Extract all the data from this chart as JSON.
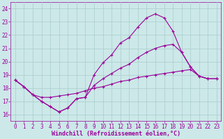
{
  "xlabel": "Windchill (Refroidissement éolien,°C)",
  "bg_color": "#cce8e8",
  "line_color": "#990099",
  "grid_color": "#aacccc",
  "x_ticks": [
    0,
    1,
    2,
    3,
    4,
    5,
    6,
    7,
    8,
    9,
    10,
    11,
    12,
    13,
    14,
    15,
    16,
    17,
    18,
    19,
    20,
    21,
    22,
    23
  ],
  "y_ticks": [
    16,
    17,
    18,
    19,
    20,
    21,
    22,
    23,
    24
  ],
  "ylim": [
    15.5,
    24.5
  ],
  "xlim": [
    -0.5,
    23.5
  ],
  "series1_x": [
    0,
    1,
    2,
    3,
    4,
    5,
    6,
    7,
    8,
    9,
    10,
    11,
    12,
    13,
    14,
    15,
    16,
    17,
    18,
    19,
    20,
    21,
    22,
    23
  ],
  "series1_y": [
    18.6,
    18.1,
    17.5,
    17.0,
    16.6,
    16.2,
    16.5,
    17.2,
    17.3,
    19.0,
    19.9,
    20.5,
    21.4,
    21.8,
    22.6,
    23.3,
    23.6,
    23.3,
    22.3,
    20.7,
    19.6,
    18.9,
    18.7,
    18.7
  ],
  "series2_x": [
    0,
    1,
    2,
    3,
    4,
    5,
    6,
    7,
    8,
    9,
    10,
    11,
    12,
    13,
    14,
    15,
    16,
    17,
    18,
    19,
    20,
    21,
    22,
    23
  ],
  "series2_y": [
    18.6,
    18.1,
    17.5,
    17.3,
    17.3,
    17.4,
    17.5,
    17.6,
    17.8,
    18.0,
    18.1,
    18.3,
    18.5,
    18.6,
    18.8,
    18.9,
    19.0,
    19.1,
    19.2,
    19.3,
    19.4,
    18.9,
    18.7,
    18.7
  ],
  "series3_x": [
    0,
    1,
    2,
    3,
    4,
    5,
    6,
    7,
    8,
    9,
    10,
    11,
    12,
    13,
    14,
    15,
    16,
    17,
    18,
    19,
    20,
    21,
    22,
    23
  ],
  "series3_y": [
    18.6,
    18.1,
    17.5,
    17.0,
    16.6,
    16.2,
    16.5,
    17.2,
    17.3,
    18.2,
    18.7,
    19.1,
    19.5,
    19.8,
    20.3,
    20.7,
    21.0,
    21.2,
    21.3,
    20.7,
    19.6,
    18.9,
    18.7,
    18.7
  ],
  "tick_fontsize": 5.5,
  "xlabel_fontsize": 6.0,
  "marker_size": 2.5,
  "line_width": 0.8
}
